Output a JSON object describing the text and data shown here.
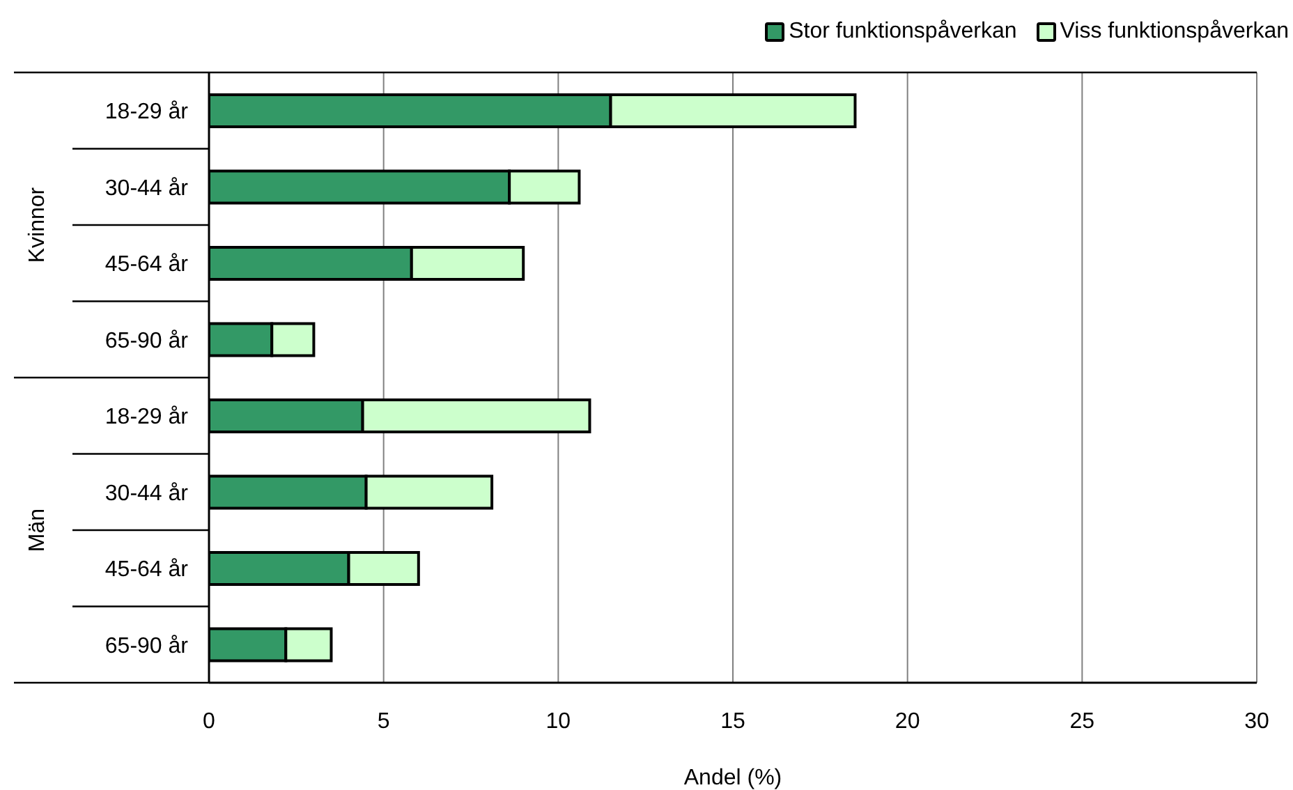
{
  "chart_data": {
    "type": "bar",
    "orientation": "horizontal",
    "stacked": true,
    "categories": [
      "18-29 år",
      "30-44 år",
      "45-64 år",
      "65-90 år",
      "18-29 år",
      "30-44 år",
      "45-64 år",
      "65-90 år"
    ],
    "series": [
      {
        "name": "Stor funktionspåverkan",
        "color": "#339966",
        "values": [
          11.5,
          8.6,
          5.8,
          1.8,
          4.4,
          4.5,
          4.0,
          2.2
        ]
      },
      {
        "name": "Viss funktionspåverkan",
        "color": "#ccffcc",
        "values": [
          7.0,
          2.0,
          3.2,
          1.2,
          6.5,
          3.6,
          2.0,
          1.3
        ]
      }
    ],
    "xlabel": "Andel (%)",
    "xlim": [
      0,
      30
    ],
    "xticks": [
      0,
      5,
      10,
      15,
      20,
      25,
      30
    ],
    "grid": "x",
    "legend": "top right",
    "annotations": [
      "Kvinnor",
      "Män"
    ]
  }
}
